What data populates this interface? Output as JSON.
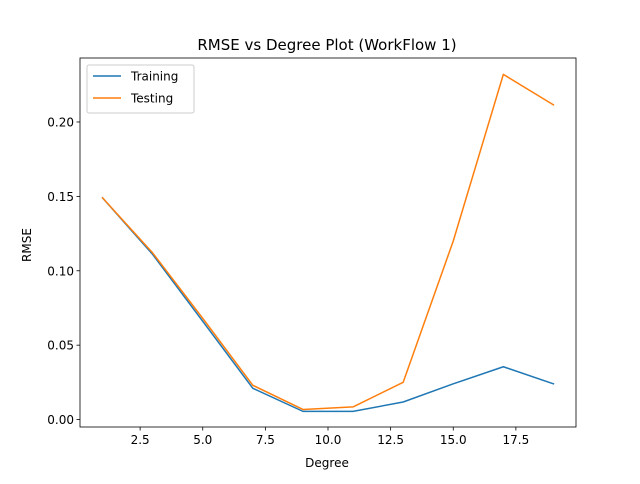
{
  "chart_data": {
    "type": "line",
    "title": "RMSE vs Degree Plot (WorkFlow 1)",
    "xlabel": "Degree",
    "ylabel": "RMSE",
    "xlim": [
      0.1,
      19.9
    ],
    "ylim": [
      -0.005,
      0.243
    ],
    "xticks": [
      2.5,
      5.0,
      7.5,
      10.0,
      12.5,
      15.0,
      17.5
    ],
    "xtick_labels": [
      "2.5",
      "5.0",
      "7.5",
      "10.0",
      "12.5",
      "15.0",
      "17.5"
    ],
    "yticks": [
      0.0,
      0.05,
      0.1,
      0.15,
      0.2
    ],
    "ytick_labels": [
      "0.00",
      "0.05",
      "0.10",
      "0.15",
      "0.20"
    ],
    "grid": false,
    "legend_position": "top-left",
    "x": [
      1,
      3,
      5,
      7,
      9,
      11,
      13,
      15,
      17,
      19
    ],
    "series": [
      {
        "name": "Training",
        "color": "#1f77b4",
        "values": [
          0.149,
          0.111,
          0.066,
          0.021,
          0.0055,
          0.0055,
          0.0118,
          0.024,
          0.0355,
          0.024
        ]
      },
      {
        "name": "Testing",
        "color": "#ff7f0e",
        "values": [
          0.149,
          0.112,
          0.068,
          0.023,
          0.0068,
          0.0085,
          0.025,
          0.12,
          0.232,
          0.2115
        ]
      }
    ]
  }
}
